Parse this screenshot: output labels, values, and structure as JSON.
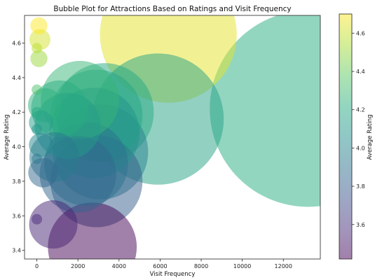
{
  "chart_data": {
    "type": "scatter",
    "title": "Bubble Plot for Attractions Based on Ratings and Visit Frequency",
    "xlabel": "Visit Frequency",
    "ylabel": "Average Rating",
    "colorbar_label": "Average Rating",
    "xlim": [
      -600,
      13800
    ],
    "ylim": [
      3.35,
      4.76
    ],
    "xticks": [
      0,
      2000,
      4000,
      6000,
      8000,
      10000,
      12000
    ],
    "yticks": [
      3.4,
      3.6,
      3.8,
      4.0,
      4.2,
      4.4,
      4.6
    ],
    "colorbar_ticks": [
      3.6,
      3.8,
      4.0,
      4.2,
      4.4,
      4.6
    ],
    "color_range": [
      3.42,
      4.7
    ],
    "colormap": "viridis",
    "alpha": 0.5,
    "grid": false,
    "size_encodes": "Visit Frequency",
    "points": [
      {
        "x": 13200,
        "y": 4.22
      },
      {
        "x": 6400,
        "y": 4.65
      },
      {
        "x": 5900,
        "y": 4.16
      },
      {
        "x": 3300,
        "y": 4.2
      },
      {
        "x": 2900,
        "y": 4.18
      },
      {
        "x": 3100,
        "y": 3.97
      },
      {
        "x": 2900,
        "y": 3.8
      },
      {
        "x": 2800,
        "y": 4.08
      },
      {
        "x": 2400,
        "y": 3.9
      },
      {
        "x": 2100,
        "y": 4.27
      },
      {
        "x": 2000,
        "y": 3.84
      },
      {
        "x": 2700,
        "y": 3.42
      },
      {
        "x": 1500,
        "y": 4.12
      },
      {
        "x": 1100,
        "y": 4.22
      },
      {
        "x": 850,
        "y": 3.94
      },
      {
        "x": 800,
        "y": 3.55
      },
      {
        "x": 300,
        "y": 3.85
      },
      {
        "x": 400,
        "y": 4.24
      },
      {
        "x": 200,
        "y": 4.14
      },
      {
        "x": 150,
        "y": 4.62
      },
      {
        "x": 200,
        "y": 4.01
      },
      {
        "x": 100,
        "y": 4.7
      },
      {
        "x": 100,
        "y": 4.51
      },
      {
        "x": 0,
        "y": 4.57
      },
      {
        "x": 0,
        "y": 4.33
      },
      {
        "x": 0,
        "y": 4.2
      },
      {
        "x": 0,
        "y": 4.1
      },
      {
        "x": 0,
        "y": 3.93
      },
      {
        "x": 0,
        "y": 3.58
      }
    ]
  }
}
